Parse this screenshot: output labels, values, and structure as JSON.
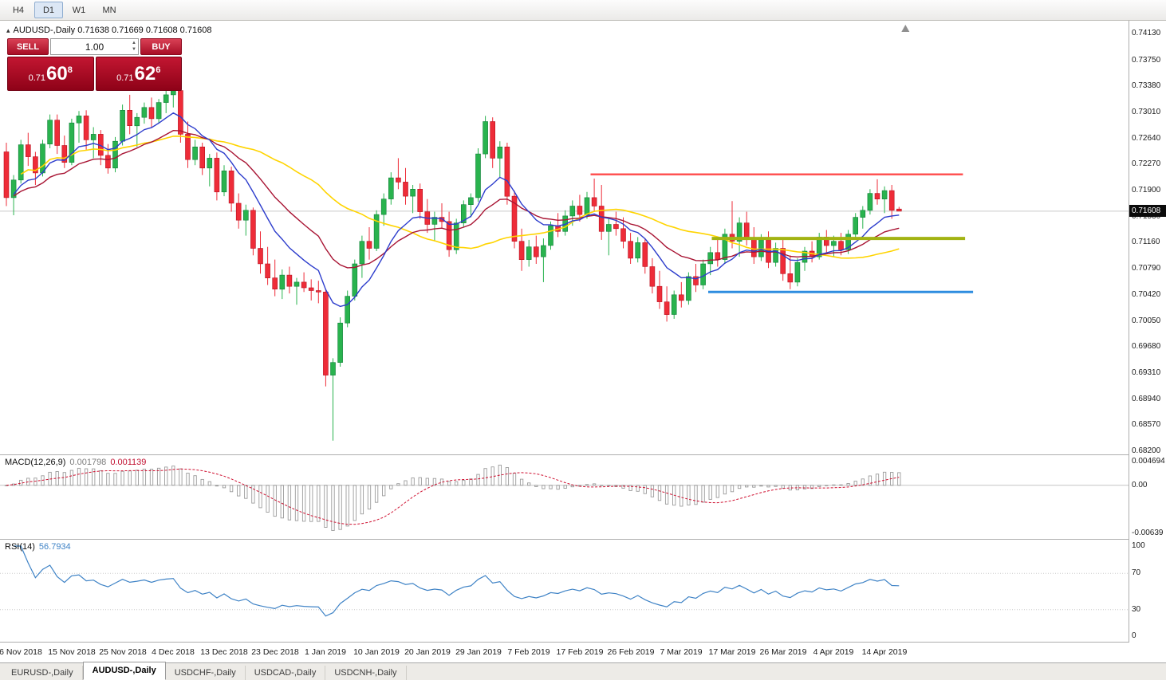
{
  "toolbar": {
    "buttons": [
      {
        "label": "H4",
        "active": false
      },
      {
        "label": "D1",
        "active": true
      },
      {
        "label": "W1",
        "active": false
      },
      {
        "label": "MN",
        "active": false
      }
    ]
  },
  "chart_header": {
    "symbol_label": "AUDUSD-,Daily",
    "ohlc": "0.71638 0.71669 0.71608 0.71608"
  },
  "trade_panel": {
    "sell_label": "SELL",
    "buy_label": "BUY",
    "lot_size": "1.00",
    "sell_price": {
      "prefix": "0.71",
      "big": "60",
      "sup": "8"
    },
    "buy_price": {
      "prefix": "0.71",
      "big": "62",
      "sup": "6"
    }
  },
  "icons": {
    "collapse_arrow": "▴",
    "spinner_up": "▲",
    "spinner_down": "▼",
    "shift_marker": "▲"
  },
  "price_scale": {
    "labels": [
      "0.74130",
      "0.73750",
      "0.73380",
      "0.73010",
      "0.72640",
      "0.72270",
      "0.71900",
      "0.71530",
      "0.71160",
      "0.70790",
      "0.70420",
      "0.70050",
      "0.69680",
      "0.69310",
      "0.68940",
      "0.68570",
      "0.68200"
    ],
    "current_price": "0.71608"
  },
  "macd_panel": {
    "label": "MACD(12,26,9)",
    "value_main": "0.001798",
    "value_signal": "0.001139",
    "scale_top": "0.004694",
    "scale_zero": "0.00",
    "scale_bottom": "-0.00639"
  },
  "rsi_panel": {
    "label": "RSI(14)",
    "value": "56.7934",
    "scale_top": "100",
    "scale_high": "70",
    "scale_low": "30",
    "scale_bottom": "0"
  },
  "time_axis": {
    "labels": [
      "6 Nov 2018",
      "15 Nov 2018",
      "25 Nov 2018",
      "4 Dec 2018",
      "13 Dec 2018",
      "23 Dec 2018",
      "1 Jan 2019",
      "10 Jan 2019",
      "20 Jan 2019",
      "29 Jan 2019",
      "7 Feb 2019",
      "17 Feb 2019",
      "26 Feb 2019",
      "7 Mar 2019",
      "17 Mar 2019",
      "26 Mar 2019",
      "4 Apr 2019",
      "14 Apr 2019"
    ]
  },
  "tabs": [
    {
      "label": "EURUSD-,Daily",
      "active": false
    },
    {
      "label": "AUDUSD-,Daily",
      "active": true
    },
    {
      "label": "USDCHF-,Daily",
      "active": false
    },
    {
      "label": "USDCAD-,Daily",
      "active": false
    },
    {
      "label": "USDCNH-,Daily",
      "active": false
    }
  ],
  "chart_data": {
    "type": "candlestick",
    "title": "AUDUSD-,Daily",
    "price_range": [
      0.682,
      0.7413
    ],
    "axis_label_indices": [
      2,
      9,
      16,
      23,
      30,
      37,
      44,
      51,
      58,
      65,
      72,
      79,
      86,
      93,
      100,
      107,
      114,
      121
    ],
    "colors": {
      "up": "#29b34e",
      "up_border": "#0f8038",
      "down": "#ee2c38",
      "down_border": "#b8101f",
      "price_line": "#c9c9c9"
    },
    "candles": [
      [
        0.7245,
        0.7258,
        0.7168,
        0.718
      ],
      [
        0.718,
        0.7212,
        0.7155,
        0.7205
      ],
      [
        0.7205,
        0.7262,
        0.72,
        0.7255
      ],
      [
        0.7255,
        0.7272,
        0.7225,
        0.7238
      ],
      [
        0.7238,
        0.7245,
        0.7198,
        0.7215
      ],
      [
        0.7215,
        0.7262,
        0.721,
        0.7256
      ],
      [
        0.7256,
        0.7298,
        0.725,
        0.729
      ],
      [
        0.729,
        0.7298,
        0.7242,
        0.7254
      ],
      [
        0.7254,
        0.7268,
        0.7222,
        0.723
      ],
      [
        0.723,
        0.7292,
        0.7226,
        0.7286
      ],
      [
        0.7286,
        0.7303,
        0.7258,
        0.7296
      ],
      [
        0.7296,
        0.7304,
        0.7248,
        0.7262
      ],
      [
        0.7262,
        0.728,
        0.7236,
        0.727
      ],
      [
        0.727,
        0.7276,
        0.7226,
        0.724
      ],
      [
        0.724,
        0.7256,
        0.7214,
        0.7222
      ],
      [
        0.7222,
        0.7266,
        0.7216,
        0.726
      ],
      [
        0.726,
        0.7312,
        0.7254,
        0.7304
      ],
      [
        0.7304,
        0.7326,
        0.727,
        0.7282
      ],
      [
        0.7282,
        0.73,
        0.7252,
        0.7294
      ],
      [
        0.7294,
        0.7315,
        0.7285,
        0.7308
      ],
      [
        0.7308,
        0.7322,
        0.728,
        0.7292
      ],
      [
        0.7292,
        0.732,
        0.7286,
        0.7315
      ],
      [
        0.7315,
        0.7332,
        0.73,
        0.7326
      ],
      [
        0.7326,
        0.7338,
        0.7308,
        0.7332
      ],
      [
        0.7332,
        0.7336,
        0.7258,
        0.727
      ],
      [
        0.727,
        0.7288,
        0.7222,
        0.7234
      ],
      [
        0.7234,
        0.7262,
        0.7226,
        0.7252
      ],
      [
        0.7252,
        0.7258,
        0.7212,
        0.7222
      ],
      [
        0.7222,
        0.7242,
        0.7196,
        0.7236
      ],
      [
        0.7236,
        0.7244,
        0.7176,
        0.7188
      ],
      [
        0.7188,
        0.7226,
        0.7182,
        0.7218
      ],
      [
        0.7218,
        0.7224,
        0.716,
        0.7172
      ],
      [
        0.7172,
        0.7186,
        0.7136,
        0.7148
      ],
      [
        0.7148,
        0.717,
        0.7126,
        0.7162
      ],
      [
        0.7162,
        0.7166,
        0.7098,
        0.7108
      ],
      [
        0.7108,
        0.7132,
        0.7072,
        0.7086
      ],
      [
        0.7086,
        0.711,
        0.7056,
        0.7066
      ],
      [
        0.7066,
        0.7092,
        0.704,
        0.705
      ],
      [
        0.705,
        0.7078,
        0.7036,
        0.707
      ],
      [
        0.707,
        0.7082,
        0.7044,
        0.7054
      ],
      [
        0.7054,
        0.7066,
        0.7028,
        0.706
      ],
      [
        0.706,
        0.7074,
        0.7046,
        0.7052
      ],
      [
        0.7052,
        0.7064,
        0.7034,
        0.7048
      ],
      [
        0.7048,
        0.7062,
        0.703,
        0.7046
      ],
      [
        0.7046,
        0.705,
        0.6912,
        0.6928
      ],
      [
        0.6928,
        0.6952,
        0.6835,
        0.6946
      ],
      [
        0.6946,
        0.701,
        0.694,
        0.7002
      ],
      [
        0.7002,
        0.7048,
        0.6996,
        0.704
      ],
      [
        0.704,
        0.7092,
        0.7034,
        0.7086
      ],
      [
        0.7086,
        0.7126,
        0.7066,
        0.7118
      ],
      [
        0.7118,
        0.7138,
        0.7092,
        0.7108
      ],
      [
        0.7108,
        0.7162,
        0.7104,
        0.7156
      ],
      [
        0.7156,
        0.7186,
        0.714,
        0.7178
      ],
      [
        0.7178,
        0.7216,
        0.717,
        0.7208
      ],
      [
        0.7208,
        0.7236,
        0.7192,
        0.7202
      ],
      [
        0.7202,
        0.7222,
        0.717,
        0.7182
      ],
      [
        0.7182,
        0.7198,
        0.7158,
        0.7192
      ],
      [
        0.7192,
        0.72,
        0.715,
        0.716
      ],
      [
        0.716,
        0.7178,
        0.713,
        0.7142
      ],
      [
        0.7142,
        0.716,
        0.7118,
        0.7152
      ],
      [
        0.7152,
        0.7172,
        0.7136,
        0.7146
      ],
      [
        0.7146,
        0.716,
        0.7096,
        0.7106
      ],
      [
        0.7106,
        0.715,
        0.71,
        0.7144
      ],
      [
        0.7144,
        0.7176,
        0.7138,
        0.717
      ],
      [
        0.717,
        0.7186,
        0.7152,
        0.718
      ],
      [
        0.718,
        0.725,
        0.7174,
        0.7242
      ],
      [
        0.7242,
        0.7296,
        0.7236,
        0.7288
      ],
      [
        0.7288,
        0.7294,
        0.7222,
        0.7236
      ],
      [
        0.7236,
        0.726,
        0.7208,
        0.7252
      ],
      [
        0.7252,
        0.7258,
        0.717,
        0.7182
      ],
      [
        0.7182,
        0.719,
        0.7108,
        0.7118
      ],
      [
        0.7118,
        0.7136,
        0.7076,
        0.7092
      ],
      [
        0.7092,
        0.712,
        0.7082,
        0.711
      ],
      [
        0.711,
        0.7126,
        0.7086,
        0.7096
      ],
      [
        0.7096,
        0.7122,
        0.706,
        0.7112
      ],
      [
        0.7112,
        0.7146,
        0.7106,
        0.714
      ],
      [
        0.714,
        0.7158,
        0.7124,
        0.7132
      ],
      [
        0.7132,
        0.7162,
        0.7126,
        0.7154
      ],
      [
        0.7154,
        0.7176,
        0.714,
        0.7168
      ],
      [
        0.7168,
        0.7184,
        0.7146,
        0.7156
      ],
      [
        0.7156,
        0.7188,
        0.715,
        0.718
      ],
      [
        0.718,
        0.7207,
        0.716,
        0.7168
      ],
      [
        0.7168,
        0.7198,
        0.712,
        0.7132
      ],
      [
        0.7132,
        0.715,
        0.7098,
        0.7142
      ],
      [
        0.7142,
        0.716,
        0.7126,
        0.7136
      ],
      [
        0.7136,
        0.7152,
        0.7108,
        0.7118
      ],
      [
        0.7118,
        0.713,
        0.7086,
        0.7094
      ],
      [
        0.7094,
        0.7124,
        0.7088,
        0.7116
      ],
      [
        0.7116,
        0.7122,
        0.7072,
        0.7082
      ],
      [
        0.7082,
        0.7094,
        0.7044,
        0.7054
      ],
      [
        0.7054,
        0.7076,
        0.7022,
        0.7032
      ],
      [
        0.7032,
        0.7054,
        0.7004,
        0.7014
      ],
      [
        0.7014,
        0.7048,
        0.7008,
        0.7042
      ],
      [
        0.7042,
        0.706,
        0.7024,
        0.7034
      ],
      [
        0.7034,
        0.7074,
        0.7028,
        0.7068
      ],
      [
        0.7068,
        0.7086,
        0.7046,
        0.7056
      ],
      [
        0.7056,
        0.7092,
        0.705,
        0.7086
      ],
      [
        0.7086,
        0.711,
        0.707,
        0.7102
      ],
      [
        0.7102,
        0.712,
        0.7082,
        0.7092
      ],
      [
        0.7092,
        0.7136,
        0.7086,
        0.7128
      ],
      [
        0.7128,
        0.7175,
        0.7108,
        0.7118
      ],
      [
        0.7118,
        0.7152,
        0.7096,
        0.7144
      ],
      [
        0.7144,
        0.716,
        0.7112,
        0.7122
      ],
      [
        0.7122,
        0.7138,
        0.7086,
        0.7096
      ],
      [
        0.7096,
        0.7128,
        0.709,
        0.712
      ],
      [
        0.712,
        0.7132,
        0.708,
        0.7088
      ],
      [
        0.7088,
        0.7116,
        0.7082,
        0.7108
      ],
      [
        0.7108,
        0.7122,
        0.7062,
        0.7072
      ],
      [
        0.7072,
        0.7098,
        0.705,
        0.706
      ],
      [
        0.706,
        0.7094,
        0.7054,
        0.7088
      ],
      [
        0.7088,
        0.711,
        0.7076,
        0.7104
      ],
      [
        0.7104,
        0.7118,
        0.7088,
        0.7096
      ],
      [
        0.7096,
        0.713,
        0.7092,
        0.7124
      ],
      [
        0.7124,
        0.7134,
        0.7102,
        0.7112
      ],
      [
        0.7112,
        0.7126,
        0.7096,
        0.7118
      ],
      [
        0.7118,
        0.713,
        0.7098,
        0.7106
      ],
      [
        0.7106,
        0.7134,
        0.71,
        0.7128
      ],
      [
        0.7128,
        0.7158,
        0.7122,
        0.7152
      ],
      [
        0.7152,
        0.7168,
        0.7136,
        0.7162
      ],
      [
        0.7162,
        0.7192,
        0.7156,
        0.7186
      ],
      [
        0.7186,
        0.7206,
        0.717,
        0.7178
      ],
      [
        0.7178,
        0.7196,
        0.7158,
        0.719
      ],
      [
        0.719,
        0.7198,
        0.715,
        0.7162
      ],
      [
        0.71638,
        0.71669,
        0.71608,
        0.71608
      ]
    ],
    "overlays": {
      "moving_averages": [
        {
          "name": "fast",
          "type": "ema",
          "period": 10,
          "color": "#2c3ccc",
          "width": 1.4
        },
        {
          "name": "medium",
          "type": "ema",
          "period": 21,
          "color": "#a81433",
          "width": 1.4
        },
        {
          "name": "slow",
          "type": "sma",
          "period": 34,
          "color": "#ffd400",
          "width": 1.6
        }
      ],
      "hlines": [
        {
          "name": "resistance-line",
          "price": 0.7213,
          "color": "#ff5252",
          "width": 2.5,
          "from_index": 80.5,
          "to_index": 131.8
        },
        {
          "name": "pivot-line",
          "price": 0.7122,
          "color": "#a2b313",
          "width": 4,
          "from_index": 97.2,
          "to_index": 132.1
        },
        {
          "name": "support-line",
          "price": 0.7046,
          "color": "#2e8de0",
          "width": 3,
          "from_index": 96.7,
          "to_index": 133.2
        }
      ]
    },
    "indicators": {
      "macd": {
        "fast": 12,
        "slow": 26,
        "signal": 9,
        "last_main": 0.001798,
        "last_signal": 0.001139
      },
      "rsi": {
        "period": 14,
        "last": 56.7934,
        "levels": [
          30,
          70
        ]
      }
    }
  }
}
